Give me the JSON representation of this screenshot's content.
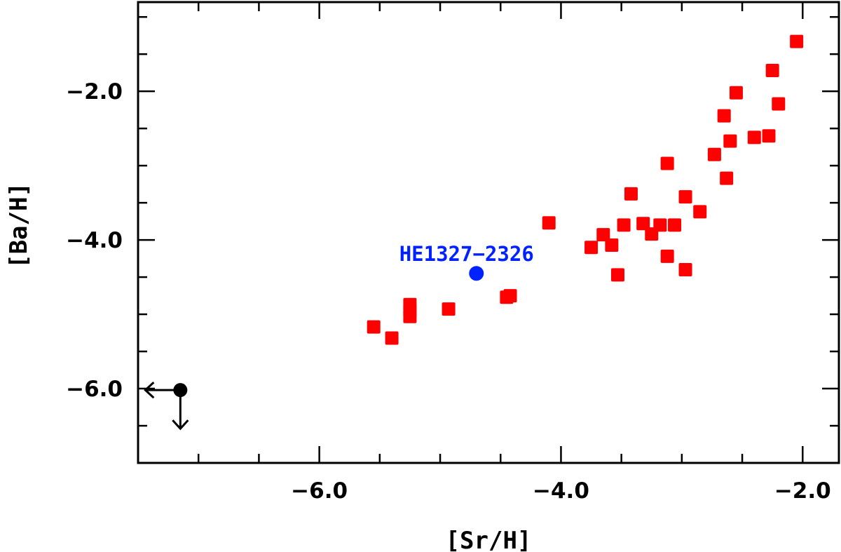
{
  "chart_data": {
    "type": "scatter",
    "xlabel": "[Sr/H]",
    "ylabel": "[Ba/H]",
    "xlim": [
      -7.5,
      -1.7
    ],
    "ylim": [
      -7.0,
      -0.8
    ],
    "x_major_ticks": [
      -6.0,
      -4.0,
      -2.0
    ],
    "x_tick_labels": [
      "−6.0",
      "−4.0",
      "−2.0"
    ],
    "x_minor_step": 0.5,
    "y_major_ticks": [
      -6.0,
      -4.0,
      -2.0
    ],
    "y_tick_labels": [
      "−6.0",
      "−4.0",
      "−2.0"
    ],
    "y_minor_step": 0.5,
    "grid": false,
    "series": [
      {
        "marker": "square",
        "color": "#ff0000",
        "points": [
          [
            -5.55,
            -5.17
          ],
          [
            -5.4,
            -5.32
          ],
          [
            -5.25,
            -4.87
          ],
          [
            -5.25,
            -4.95
          ],
          [
            -5.25,
            -5.03
          ],
          [
            -4.93,
            -4.93
          ],
          [
            -4.45,
            -4.77
          ],
          [
            -4.42,
            -4.75
          ],
          [
            -4.1,
            -3.77
          ],
          [
            -3.75,
            -4.1
          ],
          [
            -3.65,
            -3.93
          ],
          [
            -3.58,
            -4.07
          ],
          [
            -3.53,
            -4.47
          ],
          [
            -3.48,
            -3.8
          ],
          [
            -3.42,
            -3.38
          ],
          [
            -3.32,
            -3.78
          ],
          [
            -3.25,
            -3.92
          ],
          [
            -3.18,
            -3.8
          ],
          [
            -3.12,
            -2.97
          ],
          [
            -3.12,
            -4.22
          ],
          [
            -3.06,
            -3.8
          ],
          [
            -2.97,
            -3.42
          ],
          [
            -2.97,
            -4.4
          ],
          [
            -2.85,
            -3.62
          ],
          [
            -2.73,
            -2.85
          ],
          [
            -2.65,
            -2.33
          ],
          [
            -2.63,
            -3.17
          ],
          [
            -2.6,
            -2.67
          ],
          [
            -2.55,
            -2.02
          ],
          [
            -2.4,
            -2.62
          ],
          [
            -2.28,
            -2.6
          ],
          [
            -2.25,
            -1.72
          ],
          [
            -2.2,
            -2.17
          ],
          [
            -2.05,
            -1.33
          ]
        ]
      },
      {
        "marker": "circle",
        "color": "#0022ff",
        "label": "HE1327−2326",
        "points": [
          [
            -4.7,
            -4.45
          ]
        ]
      },
      {
        "marker": "circle",
        "color": "#000000",
        "upper_limit": true,
        "points": [
          [
            -7.15,
            -6.02
          ]
        ]
      }
    ]
  }
}
